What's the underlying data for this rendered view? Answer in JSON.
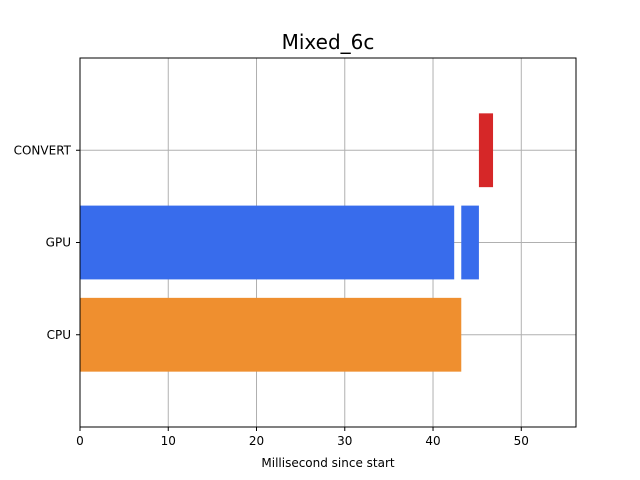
{
  "chart_data": {
    "type": "bar",
    "orientation": "horizontal",
    "title": "Mixed_6c",
    "xlabel": "Millisecond since start",
    "ylabel": "",
    "categories": [
      "CPU",
      "GPU",
      "CONVERT"
    ],
    "xlim": [
      0,
      56.2
    ],
    "ylim": [
      -1.0,
      3.0
    ],
    "xticks": [
      0,
      10,
      20,
      30,
      40,
      50
    ],
    "grid": true,
    "colors": {
      "CPU": "#ef8f2f",
      "GPU": "#386cec",
      "CONVERT": "#d62728"
    },
    "segments": [
      {
        "category": "CPU",
        "start": 0.0,
        "end": 43.2
      },
      {
        "category": "GPU",
        "start": 0.0,
        "end": 42.4
      },
      {
        "category": "GPU",
        "start": 43.2,
        "end": 45.2
      },
      {
        "category": "CONVERT",
        "start": 45.2,
        "end": 46.8
      }
    ]
  }
}
